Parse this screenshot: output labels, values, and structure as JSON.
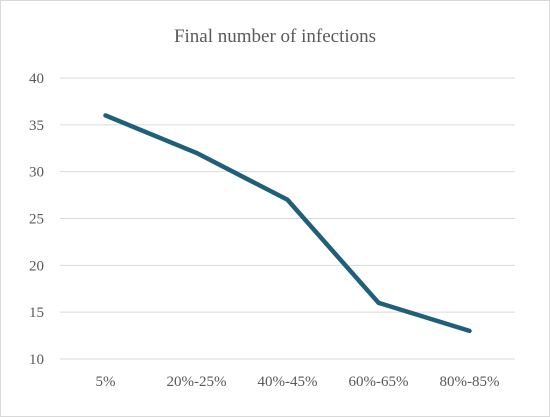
{
  "chart_data": {
    "type": "line",
    "title": "Final number of infections",
    "xlabel": "",
    "ylabel": "",
    "categories": [
      "5%",
      "20%-25%",
      "40%-45%",
      "60%-65%",
      "80%-85%"
    ],
    "series": [
      {
        "values": [
          36,
          32,
          27,
          16,
          13
        ]
      }
    ],
    "ylim": [
      10,
      40
    ],
    "yticks": [
      10,
      15,
      20,
      25,
      30,
      35,
      40
    ],
    "grid": true,
    "legend": "none",
    "colors": {
      "series": "#1f5f7a",
      "grid": "#d9d9d9",
      "text": "#595959"
    }
  }
}
